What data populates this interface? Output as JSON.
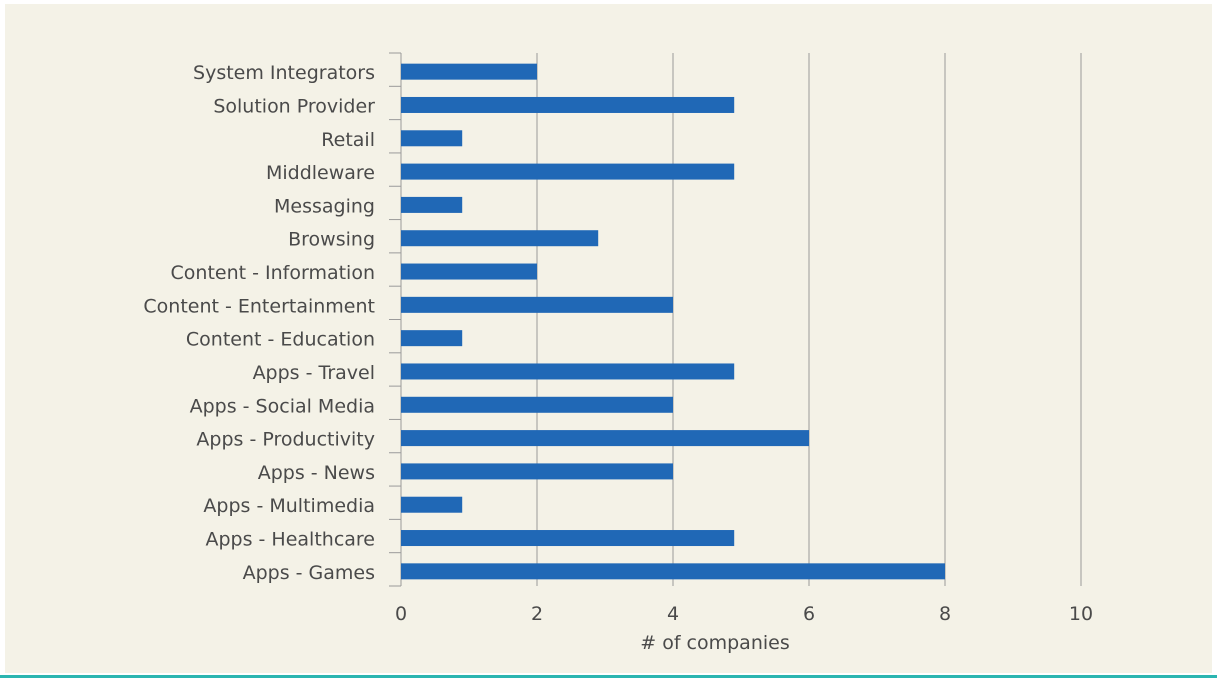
{
  "chart_data": {
    "type": "bar",
    "orientation": "horizontal",
    "categories": [
      "System Integrators",
      "Solution Provider",
      "Retail",
      "Middleware",
      "Messaging",
      "Browsing",
      "Content - Information",
      "Content - Entertainment",
      "Content - Education",
      "Apps - Travel",
      "Apps - Social Media",
      "Apps - Productivity",
      "Apps - News",
      "Apps - Multimedia",
      "Apps - Healthcare",
      "Apps - Games"
    ],
    "values": [
      2,
      4.9,
      0.9,
      4.9,
      0.9,
      2.9,
      2,
      4,
      0.9,
      4.9,
      4,
      6,
      4,
      0.9,
      4.9,
      8
    ],
    "xlabel": "# of companies",
    "ylabel": "",
    "xlim": [
      0,
      10
    ],
    "xticks": [
      0,
      2,
      4,
      6,
      8,
      10
    ],
    "grid": "vertical",
    "bar_color": "#2068b6",
    "grid_color": "#9a9a9a",
    "background": "#f4f2e7",
    "accent_rule_color": "#2bb5b0"
  }
}
